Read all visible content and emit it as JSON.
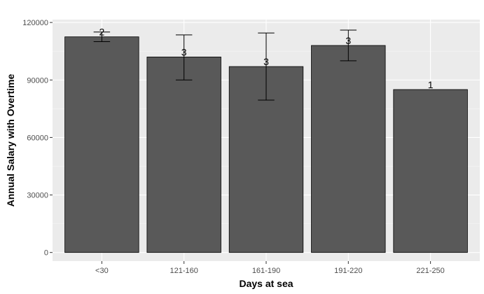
{
  "chart_data": {
    "type": "bar",
    "title": "",
    "xlabel": "Days at sea",
    "ylabel": "Annual Salary with Overtime",
    "categories": [
      "<30",
      "121-160",
      "161-190",
      "191-220",
      "221-250"
    ],
    "values": [
      112500,
      102000,
      97000,
      108000,
      85000
    ],
    "error_low": [
      110000,
      90000,
      79500,
      100000,
      null
    ],
    "error_high": [
      115000,
      113500,
      114500,
      116000,
      null
    ],
    "count_labels": [
      "2",
      "3",
      "3",
      "3",
      "1"
    ],
    "ylim": [
      -4500,
      121500
    ],
    "yticks": [
      0,
      30000,
      60000,
      90000,
      120000
    ],
    "ytick_labels": [
      "0",
      "30000",
      "60000",
      "90000",
      "120000"
    ],
    "grid": true,
    "legend": "none",
    "colors": {
      "panel": "#ebebeb",
      "grid_major": "#ffffff",
      "grid_minor": "#f5f5f5",
      "bar_fill": "#595959",
      "bar_stroke": "#000000",
      "errorbar": "#000000",
      "tick_label": "#4d4d4d",
      "axis_title": "#000000"
    }
  }
}
